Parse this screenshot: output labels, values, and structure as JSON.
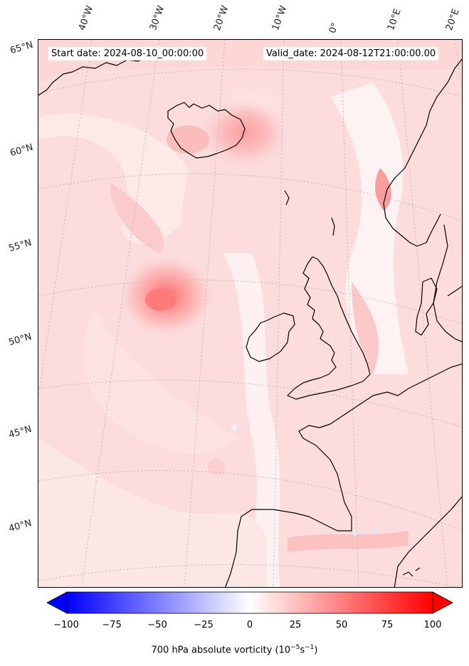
{
  "header": {
    "start_date": "Start date: 2024-08-10_00:00:00",
    "valid_date": "Valid_date: 2024-08-12T21:00:00.00"
  },
  "longitude_labels": [
    "40°W",
    "30°W",
    "20°W",
    "10°W",
    "0°",
    "10°E",
    "20°E"
  ],
  "latitude_labels": [
    "65°N",
    "60°N",
    "55°N",
    "50°N",
    "45°N",
    "40°N"
  ],
  "colorbar": {
    "ticks": [
      "−100",
      "−75",
      "−50",
      "−25",
      "0",
      "25",
      "50",
      "75",
      "100"
    ],
    "label_main": "700 hPa absolute vorticity (10",
    "label_exp1": "−5",
    "label_mid": "s",
    "label_exp2": "−1",
    "label_end": ")",
    "min_color": "#0000ff",
    "mid_color": "#ffffff",
    "max_color": "#ff0000"
  },
  "colors": {
    "background_field": "#fde0e0",
    "coastline": "#000000",
    "gridline": "#b0b0b0"
  }
}
